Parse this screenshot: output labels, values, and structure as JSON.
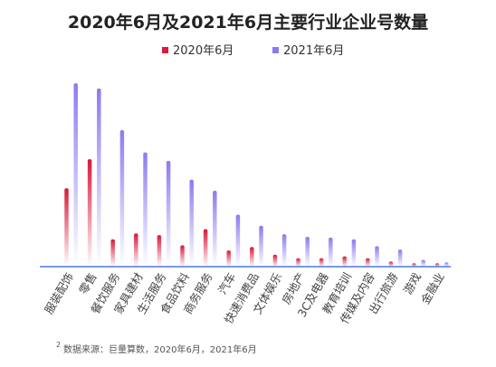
{
  "title": "2020年6月及2021年6月主要行业企业号数量",
  "footnote": {
    "number": "2",
    "text": "数据来源：巨量算数，2020年6月，2021年6月"
  },
  "colors": {
    "series_2020": "#d8193a",
    "series_2021": "#8a7cf0",
    "axis": "#4a78e0"
  },
  "chart_data": {
    "type": "bar",
    "title": "2020年6月及2021年6月主要行业企业号数量",
    "xlabel": "",
    "ylabel": "",
    "categories": [
      "服装配饰",
      "零售",
      "餐饮服务",
      "家具建材",
      "生活服务",
      "食品饮料",
      "商务服务",
      "汽车",
      "快速消费品",
      "文体娱乐",
      "房地产",
      "3C及电器",
      "教育培训",
      "传媒及内容",
      "出行旅游",
      "游戏",
      "金融业"
    ],
    "series": [
      {
        "name": "2020年6月",
        "color": "#d8193a",
        "values": [
          92,
          126,
          32,
          39,
          37,
          25,
          44,
          19,
          23,
          14,
          10,
          10,
          12,
          10,
          6,
          4,
          4
        ]
      },
      {
        "name": "2021年6月",
        "color": "#8a7cf0",
        "values": [
          215,
          209,
          160,
          134,
          124,
          102,
          89,
          61,
          48,
          38,
          35,
          34,
          32,
          24,
          20,
          8,
          5
        ]
      }
    ],
    "ylim": [
      0,
      230
    ],
    "grid": false,
    "legend": "top"
  }
}
